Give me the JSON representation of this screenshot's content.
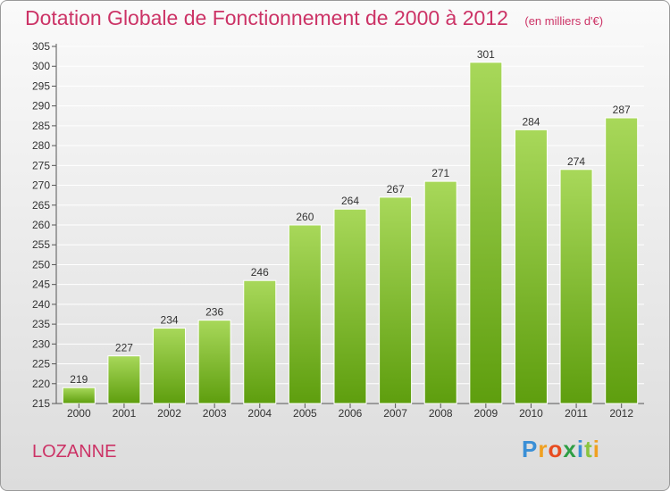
{
  "title": "Dotation Globale de Fonctionnement de 2000 à 2012",
  "subtitle": "(en milliers d'€)",
  "commune": "LOZANNE",
  "brand": {
    "letters": [
      "P",
      "r",
      "o",
      "x",
      "i",
      "t",
      "i"
    ],
    "colors": [
      "#3a8fd6",
      "#f0a020",
      "#e84c20",
      "#2e9e44",
      "#3a8fd6",
      "#8ac43f",
      "#f0a020"
    ]
  },
  "colors": {
    "bar_top": "#a8d85a",
    "bar_bottom": "#5e9e0e",
    "title": "#cc3366"
  },
  "chart_data": {
    "type": "bar",
    "categories": [
      "2000",
      "2001",
      "2002",
      "2003",
      "2004",
      "2005",
      "2006",
      "2007",
      "2008",
      "2009",
      "2010",
      "2011",
      "2012"
    ],
    "values": [
      219,
      227,
      234,
      236,
      246,
      260,
      264,
      267,
      271,
      301,
      284,
      274,
      287
    ],
    "ylim": [
      215,
      305
    ],
    "yticks": [
      215,
      220,
      225,
      230,
      235,
      240,
      245,
      250,
      255,
      260,
      265,
      270,
      275,
      280,
      285,
      290,
      295,
      300,
      305
    ],
    "xlabel": "",
    "ylabel": "",
    "grid": true
  }
}
